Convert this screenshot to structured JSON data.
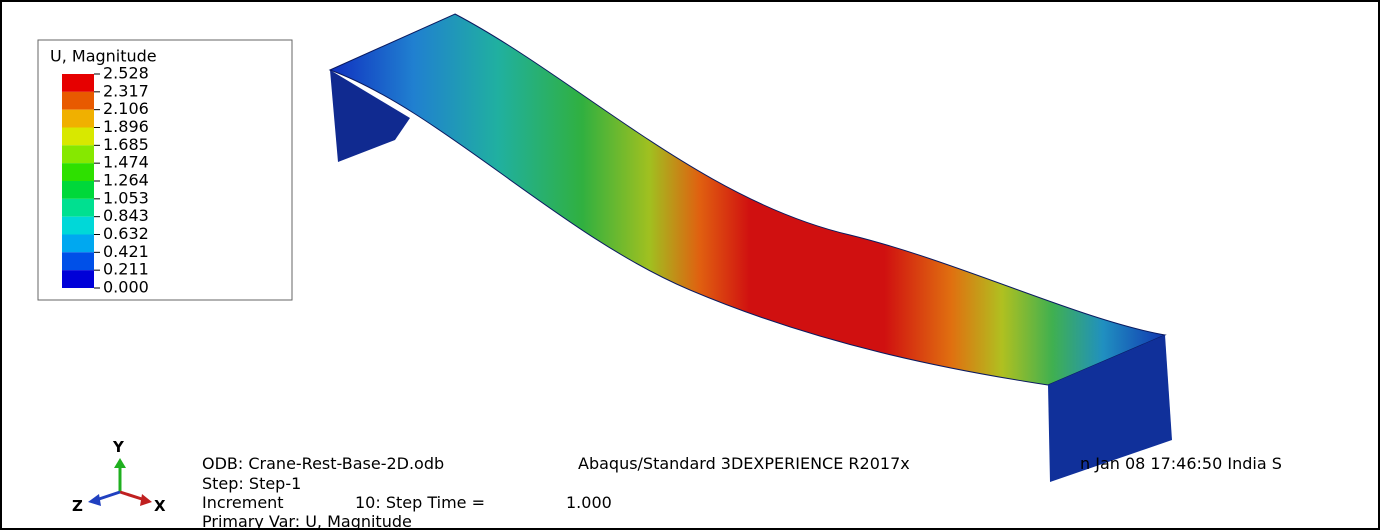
{
  "legend": {
    "title": "U, Magnitude",
    "labels": [
      "2.528",
      "2.317",
      "2.106",
      "1.896",
      "1.685",
      "1.474",
      "1.264",
      "1.053",
      "0.843",
      "0.632",
      "0.421",
      "0.211",
      "0.000"
    ],
    "colors": [
      "#e60000",
      "#e85a00",
      "#f0b000",
      "#d8e800",
      "#86e800",
      "#2ee000",
      "#00d83a",
      "#00e090",
      "#00d8d8",
      "#00a8f0",
      "#0050e8",
      "#0000d8"
    ]
  },
  "triad": {
    "y": "Y",
    "z": "Z",
    "x": "X"
  },
  "info": {
    "odb": "ODB: Crane-Rest-Base-2D.odb",
    "solver": "Abaqus/Standard 3DEXPERIENCE R2017x",
    "date": "n Jan 08 17:46:50 India S",
    "step": "Step: Step-1",
    "increment": "Increment",
    "step_time": "10: Step Time =",
    "time_value": "1.000",
    "primary_var": "Primary Var: U, Magnitude"
  }
}
